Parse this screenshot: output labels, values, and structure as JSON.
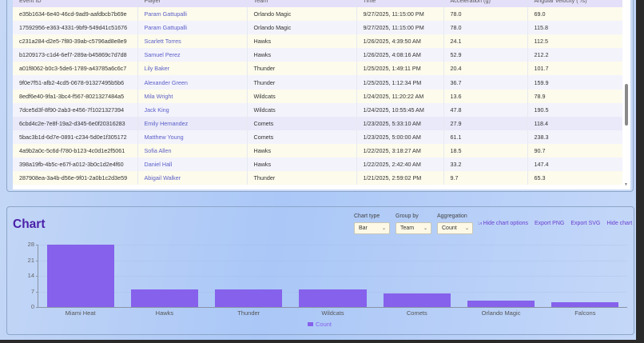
{
  "table": {
    "columns": [
      "Event ID",
      "Player",
      "Team",
      "Time",
      "Acceleration (g)",
      "Angular velocity (°/s)"
    ],
    "rows": [
      {
        "id": "e35b1634-6e40-46cd-9ad9-aafdbcb7b69e",
        "player": "Param Gattupalli",
        "team": "Orlando Magic",
        "time": "9/27/2025, 11:15:00 PM",
        "accel": "78.0",
        "angvel": "69.0"
      },
      {
        "id": "17592956-e363-4331-9bf9-549d41c51676",
        "player": "Param Gattupalli",
        "team": "Orlando Magic",
        "time": "9/27/2025, 11:15:00 PM",
        "accel": "78.0",
        "angvel": "115.8"
      },
      {
        "id": "c231a284-d2e5-7f80-39ab-c5796ad8e8e9",
        "player": "Scarlett Torres",
        "team": "Hawks",
        "time": "1/26/2025, 4:39:50 AM",
        "accel": "24.1",
        "angvel": "112.5"
      },
      {
        "id": "b1209173-c1d4-6ef7-289a-b45869c7d7d8",
        "player": "Samuel Perez",
        "team": "Hawks",
        "time": "1/26/2025, 4:08:16 AM",
        "accel": "52.9",
        "angvel": "212.2"
      },
      {
        "id": "a01f8062-b0c3-5de6-1789-a43785a6c6c7",
        "player": "Lily Baker",
        "team": "Thunder",
        "time": "1/25/2025, 1:49:11 PM",
        "accel": "20.4",
        "angvel": "101.7"
      },
      {
        "id": "9f0e7f51-afb2-4cd5-0678-91327495b5b6",
        "player": "Alexander Green",
        "team": "Thunder",
        "time": "1/25/2025, 1:12:34 PM",
        "accel": "36.7",
        "angvel": "159.9"
      },
      {
        "id": "8edf6e40-9fa1-3bc4-f567-8021327484a5",
        "player": "Mila Wright",
        "team": "Wildcats",
        "time": "1/24/2025, 11:20:22 AM",
        "accel": "13.6",
        "angvel": "78.9"
      },
      {
        "id": "7dce5d3f-8f90-2ab3-e456-7f1021327394",
        "player": "Jack King",
        "team": "Wildcats",
        "time": "1/24/2025, 10:55:45 AM",
        "accel": "47.8",
        "angvel": "190.5"
      },
      {
        "id": "6cbd4c2e-7e8f-19a2-d345-6e0f20316283",
        "player": "Emily Hernandez",
        "team": "Comets",
        "time": "1/23/2025, 5:33:10 AM",
        "accel": "27.9",
        "angvel": "118.4"
      },
      {
        "id": "5bac3b1d-6d7e-0891-c234-5d0e1f305172",
        "player": "Matthew Young",
        "team": "Comets",
        "time": "1/23/2025, 5:00:00 AM",
        "accel": "61.1",
        "angvel": "238.3"
      },
      {
        "id": "4a9b2a0c-5c6d-f780-b123-4c0d1e2f5061",
        "player": "Sofia Allen",
        "team": "Hawks",
        "time": "1/22/2025, 3:18:27 AM",
        "accel": "18.5",
        "angvel": "90.7"
      },
      {
        "id": "398a19fb-4b5c-e67f-a012-3b0c1d2e4f60",
        "player": "Daniel Hall",
        "team": "Hawks",
        "time": "1/22/2025, 2:42:40 AM",
        "accel": "33.2",
        "angvel": "147.4"
      },
      {
        "id": "287908ea-3a4b-d56e-9f01-2a0b1c2d3e59",
        "player": "Abigail Walker",
        "team": "Thunder",
        "time": "1/21/2025, 2:59:02 PM",
        "accel": "9.7",
        "angvel": "65.3"
      }
    ]
  },
  "chart_section": {
    "title": "Chart",
    "controls": {
      "chart_type": {
        "label": "Chart type",
        "value": "Bar"
      },
      "group_by": {
        "label": "Group by",
        "value": "Team"
      },
      "aggregation": {
        "label": "Aggregation",
        "value": "Count"
      }
    },
    "links": {
      "hide_options": "Hide chart options",
      "export_png": "Export PNG",
      "export_svg": "Export SVG",
      "hide_chart": "Hide chart"
    },
    "legend": "Count",
    "bar_color": "#8661ec"
  },
  "chart_data": {
    "type": "bar",
    "title": "Chart",
    "categories": [
      "Miami Heat",
      "Hawks",
      "Thunder",
      "Wildcats",
      "Comets",
      "Orlando Magic",
      "Falcons"
    ],
    "series": [
      {
        "name": "Count",
        "values": [
          28,
          8,
          8,
          8,
          6,
          3,
          2
        ]
      }
    ],
    "xlabel": "",
    "ylabel": "",
    "yticks": [
      0,
      7,
      14,
      21,
      28
    ],
    "ylim": [
      0,
      28
    ],
    "grid": true,
    "legend_position": "bottom"
  }
}
